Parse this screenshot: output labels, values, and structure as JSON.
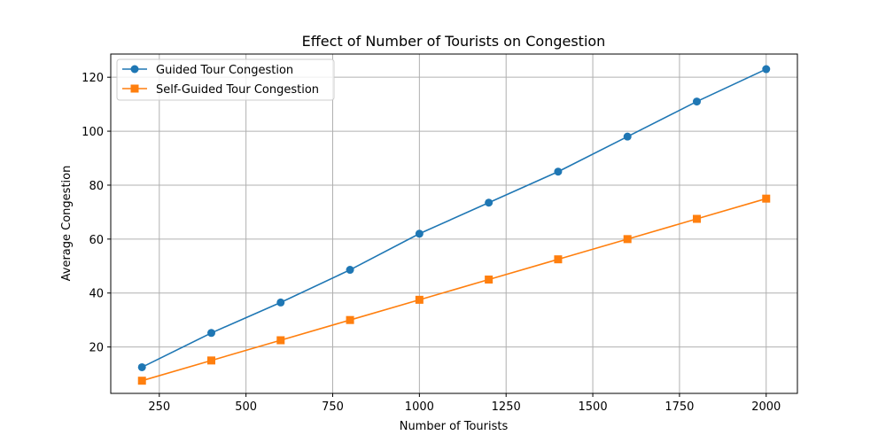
{
  "chart_data": {
    "type": "line",
    "title": "Effect of Number of Tourists on Congestion",
    "xlabel": "Number of Tourists",
    "ylabel": "Average Congestion",
    "x": [
      200,
      400,
      600,
      800,
      1000,
      1200,
      1400,
      1600,
      1800,
      2000
    ],
    "xlim": [
      110,
      2090
    ],
    "ylim": [
      2.8,
      128.6
    ],
    "xticks": [
      250,
      500,
      750,
      1000,
      1250,
      1500,
      1750,
      2000
    ],
    "yticks": [
      20,
      40,
      60,
      80,
      100,
      120
    ],
    "grid": true,
    "legend_position": "top-left",
    "series": [
      {
        "name": "Guided Tour Congestion",
        "color": "#1f77b4",
        "marker": "circle",
        "values": [
          12.5,
          25.2,
          36.5,
          48.6,
          62.0,
          73.5,
          85.0,
          98.0,
          111.0,
          123.0
        ]
      },
      {
        "name": "Self-Guided Tour Congestion",
        "color": "#ff7f0e",
        "marker": "square",
        "values": [
          7.5,
          15.0,
          22.5,
          30.0,
          37.5,
          45.0,
          52.5,
          60.0,
          67.5,
          75.0
        ]
      }
    ]
  }
}
